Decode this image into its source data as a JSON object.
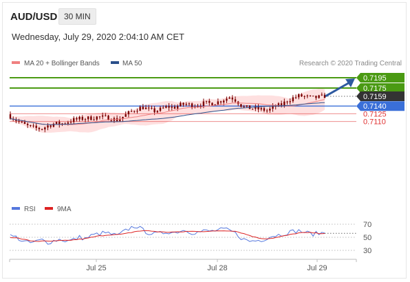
{
  "header": {
    "symbol": "AUD/USD",
    "timeframe": "30 MIN",
    "datetime": "Wednesday, July 29, 2020 2:04:10 AM CET"
  },
  "legend": {
    "ma20_bb": "MA 20 + Bollinger Bands",
    "ma50": "MA 50",
    "credit": "Research © 2020 Trading Central",
    "rsi": "RSI",
    "rsi_ma": "9MA"
  },
  "colors": {
    "resistance": "#4a9a12",
    "support_strong": "#3a6fd8",
    "support": "#e03030",
    "price_box": "#333333",
    "candle": "#7a0000",
    "bollinger_fill": "#fdd6d6",
    "ma20": "#f08080",
    "ma50": "#2a4f8a",
    "rsi": "#5577dd",
    "rsi_ma": "#dd2222",
    "arrow": "#2e5aa0"
  },
  "chart_data": [
    {
      "type": "candlestick",
      "series": [
        "MA 20 + Bollinger Bands",
        "MA 50"
      ],
      "ylim": [
        0.709,
        0.7205
      ],
      "x_ticks": [
        "Jul 25",
        "Jul 28",
        "Jul 29"
      ],
      "current_price": 0.7159,
      "levels": [
        {
          "label": "0.7195",
          "value": 0.7195,
          "kind": "resistance"
        },
        {
          "label": "0.7175",
          "value": 0.7175,
          "kind": "resistance"
        },
        {
          "label": "0.7159",
          "value": 0.7159,
          "kind": "price"
        },
        {
          "label": "0.7140",
          "value": 0.714,
          "kind": "support_strong"
        },
        {
          "label": "0.7125",
          "value": 0.7125,
          "kind": "support"
        },
        {
          "label": "0.7110",
          "value": 0.711,
          "kind": "support"
        }
      ],
      "close_path": [
        0.712,
        0.7112,
        0.7105,
        0.71,
        0.7097,
        0.7096,
        0.7102,
        0.7106,
        0.7105,
        0.7109,
        0.7113,
        0.7115,
        0.7116,
        0.7117,
        0.7119,
        0.7118,
        0.7116,
        0.7113,
        0.712,
        0.7128,
        0.7134,
        0.7138,
        0.7133,
        0.713,
        0.7134,
        0.7139,
        0.7137,
        0.7142,
        0.7144,
        0.7141,
        0.7143,
        0.7146,
        0.7145,
        0.7148,
        0.7153,
        0.7158,
        0.715,
        0.7138,
        0.7136,
        0.7135,
        0.7133,
        0.7131,
        0.7139,
        0.7142,
        0.715,
        0.7156,
        0.716,
        0.7158,
        0.7156,
        0.7157,
        0.7159
      ]
    },
    {
      "type": "line",
      "series": [
        "RSI",
        "9MA"
      ],
      "y_ticks": [
        70,
        50,
        30
      ],
      "ylim": [
        25,
        75
      ],
      "rsi_path": [
        52,
        50,
        44,
        41,
        43,
        46,
        42,
        45,
        47,
        44,
        46,
        50,
        48,
        53,
        55,
        57,
        55,
        52,
        58,
        64,
        68,
        61,
        57,
        55,
        56,
        59,
        57,
        60,
        61,
        57,
        58,
        60,
        59,
        61,
        62,
        60,
        55,
        47,
        44,
        45,
        46,
        50,
        53,
        54,
        57,
        59,
        60,
        57,
        55,
        56,
        57
      ],
      "rsi_ma_path": [
        50,
        49,
        47,
        45,
        44,
        44,
        44,
        44,
        45,
        45,
        46,
        47,
        48,
        50,
        52,
        53,
        54,
        54,
        55,
        57,
        59,
        60,
        60,
        59,
        58,
        58,
        58,
        58,
        59,
        59,
        59,
        59,
        59,
        60,
        60,
        60,
        59,
        56,
        53,
        50,
        48,
        48,
        49,
        51,
        53,
        55,
        57,
        57,
        57,
        56,
        56
      ]
    }
  ]
}
